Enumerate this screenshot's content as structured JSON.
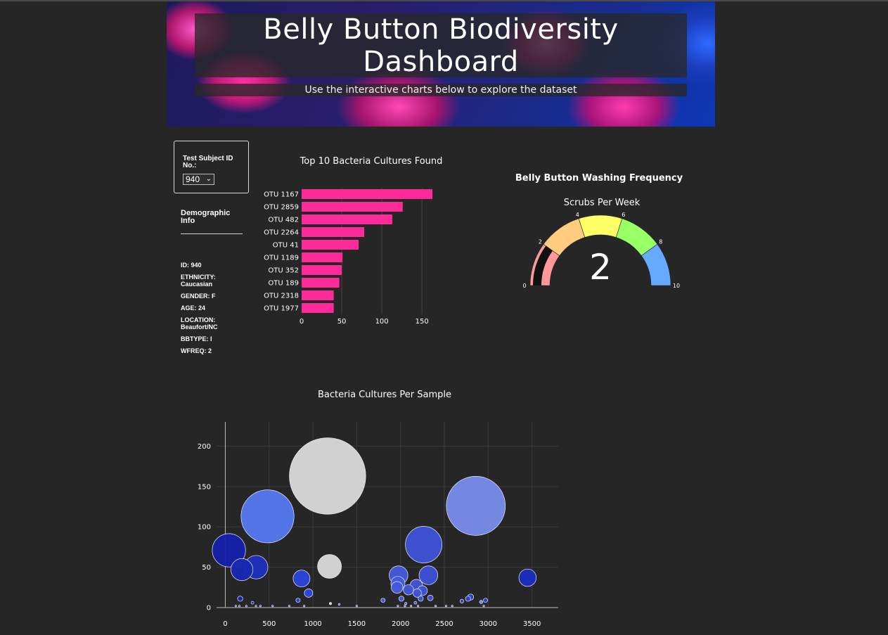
{
  "header": {
    "title": "Belly Button Biodiversity Dashboard",
    "subtitle": "Use the interactive charts below to explore the dataset"
  },
  "selector": {
    "label": "Test Subject ID No.:",
    "selected": "940"
  },
  "demographics": {
    "title": "Demographic Info",
    "items": [
      "ID: 940",
      "ETHNICITY: Caucasian",
      "GENDER: F",
      "AGE: 24",
      "LOCATION: Beaufort/NC",
      "BBTYPE: I",
      "WFREQ: 2"
    ]
  },
  "colors": {
    "bar": "#ff2a9a",
    "background": "#262626",
    "gauge_bands": [
      "#ff9999",
      "#ffcc80",
      "#ffff66",
      "#99ff66",
      "#66aaff"
    ],
    "gauge_value": "#111111"
  },
  "chart_data": [
    {
      "type": "bar",
      "orientation": "horizontal",
      "title": "Top 10 Bacteria Cultures Found",
      "categories": [
        "OTU 1167",
        "OTU 2859",
        "OTU 482",
        "OTU 2264",
        "OTU 41",
        "OTU 1189",
        "OTU 352",
        "OTU 189",
        "OTU 2318",
        "OTU 1977"
      ],
      "values": [
        163,
        126,
        113,
        78,
        71,
        51,
        50,
        47,
        40,
        40
      ],
      "xticks": [
        0,
        50,
        100,
        150
      ],
      "xlim": [
        0,
        170
      ]
    },
    {
      "type": "gauge",
      "title": "Belly Button Washing Frequency",
      "subtitle": "Scrubs Per Week",
      "value": 2,
      "range": [
        0,
        10
      ],
      "ticks": [
        0,
        2,
        4,
        6,
        8,
        10
      ]
    },
    {
      "type": "scatter",
      "subtype": "bubble",
      "title": "Bacteria Cultures Per Sample",
      "xticks": [
        0,
        500,
        1000,
        1500,
        2000,
        2500,
        3000,
        3500
      ],
      "yticks": [
        0,
        50,
        100,
        150,
        200
      ],
      "xlim": [
        -100,
        3800
      ],
      "ylim": [
        0,
        230
      ],
      "points": [
        {
          "x": 41,
          "y": 71
        },
        {
          "x": 189,
          "y": 47
        },
        {
          "x": 352,
          "y": 50
        },
        {
          "x": 482,
          "y": 113
        },
        {
          "x": 1167,
          "y": 163
        },
        {
          "x": 1189,
          "y": 51
        },
        {
          "x": 2859,
          "y": 126
        },
        {
          "x": 2264,
          "y": 78
        },
        {
          "x": 2318,
          "y": 40
        },
        {
          "x": 1977,
          "y": 40
        },
        {
          "x": 3450,
          "y": 37
        },
        {
          "x": 870,
          "y": 36
        },
        {
          "x": 1970,
          "y": 30
        },
        {
          "x": 1960,
          "y": 25
        },
        {
          "x": 2180,
          "y": 27
        },
        {
          "x": 2250,
          "y": 21
        },
        {
          "x": 2090,
          "y": 22
        },
        {
          "x": 2190,
          "y": 18
        },
        {
          "x": 950,
          "y": 18
        },
        {
          "x": 2340,
          "y": 12
        },
        {
          "x": 2800,
          "y": 13
        },
        {
          "x": 2770,
          "y": 11
        },
        {
          "x": 2010,
          "y": 11
        },
        {
          "x": 2230,
          "y": 11
        },
        {
          "x": 2970,
          "y": 9
        },
        {
          "x": 2920,
          "y": 7
        },
        {
          "x": 2700,
          "y": 8
        },
        {
          "x": 170,
          "y": 11
        },
        {
          "x": 830,
          "y": 9
        },
        {
          "x": 1800,
          "y": 9
        },
        {
          "x": 310,
          "y": 6
        },
        {
          "x": 2170,
          "y": 6
        },
        {
          "x": 1200,
          "y": 5
        },
        {
          "x": 1300,
          "y": 4
        },
        {
          "x": 2060,
          "y": 5
        },
        {
          "x": 120,
          "y": 2
        },
        {
          "x": 160,
          "y": 2
        },
        {
          "x": 240,
          "y": 2
        },
        {
          "x": 350,
          "y": 2
        },
        {
          "x": 400,
          "y": 2
        },
        {
          "x": 540,
          "y": 2
        },
        {
          "x": 730,
          "y": 2
        },
        {
          "x": 900,
          "y": 2
        },
        {
          "x": 1500,
          "y": 2
        },
        {
          "x": 1970,
          "y": 2
        },
        {
          "x": 2050,
          "y": 2
        },
        {
          "x": 2120,
          "y": 2
        },
        {
          "x": 2200,
          "y": 2
        },
        {
          "x": 2400,
          "y": 2
        },
        {
          "x": 2520,
          "y": 2
        },
        {
          "x": 2590,
          "y": 2
        },
        {
          "x": 2950,
          "y": 2
        }
      ]
    }
  ]
}
